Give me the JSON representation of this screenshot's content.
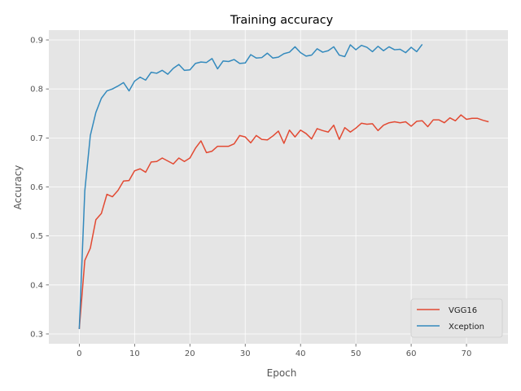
{
  "chart_data": {
    "type": "line",
    "title": "Training accuracy",
    "xlabel": "Epoch",
    "ylabel": "Accuracy",
    "xlim": [
      -5.5,
      77.5
    ],
    "ylim": [
      0.28,
      0.92
    ],
    "xticks": [
      0,
      10,
      20,
      30,
      40,
      50,
      60,
      70
    ],
    "yticks": [
      0.3,
      0.4,
      0.5,
      0.6,
      0.7,
      0.8,
      0.9
    ],
    "grid": true,
    "legend_position": "bottom-right",
    "colors": {
      "VGG16": "#E24A33",
      "Xception": "#348ABD",
      "background": "#E5E5E5"
    },
    "series": [
      {
        "name": "VGG16",
        "values": [
          0.31,
          0.45,
          0.475,
          0.533,
          0.546,
          0.585,
          0.58,
          0.593,
          0.612,
          0.613,
          0.633,
          0.637,
          0.63,
          0.651,
          0.652,
          0.659,
          0.653,
          0.647,
          0.659,
          0.652,
          0.659,
          0.679,
          0.694,
          0.67,
          0.673,
          0.683,
          0.683,
          0.683,
          0.688,
          0.705,
          0.702,
          0.69,
          0.705,
          0.697,
          0.696,
          0.704,
          0.714,
          0.689,
          0.716,
          0.702,
          0.716,
          0.709,
          0.698,
          0.719,
          0.715,
          0.712,
          0.726,
          0.697,
          0.721,
          0.712,
          0.72,
          0.73,
          0.728,
          0.729,
          0.715,
          0.726,
          0.731,
          0.733,
          0.731,
          0.733,
          0.724,
          0.734,
          0.735,
          0.723,
          0.737,
          0.737,
          0.731,
          0.741,
          0.735,
          0.747,
          0.738,
          0.74,
          0.74,
          0.736,
          0.733
        ]
      },
      {
        "name": "Xception",
        "values": [
          0.31,
          0.592,
          0.705,
          0.752,
          0.781,
          0.796,
          0.8,
          0.806,
          0.813,
          0.796,
          0.816,
          0.824,
          0.818,
          0.834,
          0.832,
          0.838,
          0.83,
          0.842,
          0.85,
          0.838,
          0.839,
          0.852,
          0.855,
          0.854,
          0.862,
          0.841,
          0.857,
          0.856,
          0.86,
          0.852,
          0.853,
          0.87,
          0.863,
          0.864,
          0.873,
          0.863,
          0.865,
          0.872,
          0.875,
          0.886,
          0.874,
          0.867,
          0.869,
          0.882,
          0.875,
          0.878,
          0.886,
          0.869,
          0.866,
          0.89,
          0.88,
          0.889,
          0.885,
          0.876,
          0.887,
          0.878,
          0.886,
          0.88,
          0.881,
          0.874,
          0.885,
          0.876,
          0.891
        ]
      }
    ]
  }
}
